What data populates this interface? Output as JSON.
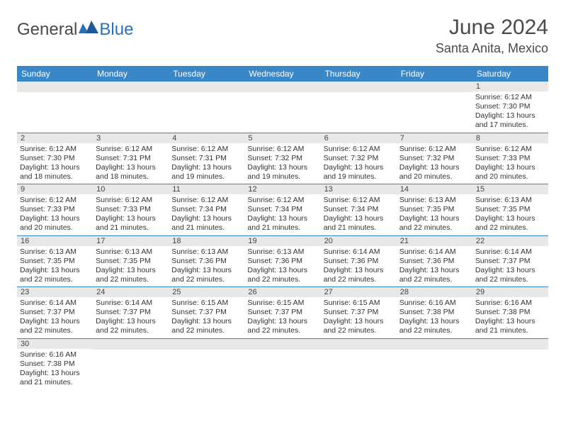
{
  "logo": {
    "text1": "General",
    "text2": "Blue"
  },
  "header": {
    "title": "June 2024",
    "subtitle": "Santa Anita, Mexico"
  },
  "days": [
    "Sunday",
    "Monday",
    "Tuesday",
    "Wednesday",
    "Thursday",
    "Friday",
    "Saturday"
  ],
  "colors": {
    "header_bg": "#3a87c7",
    "header_fg": "#ffffff",
    "daybar_bg": "#e8e8e8",
    "border": "#3a87c7",
    "text": "#333333",
    "title_color": "#4a4a4a",
    "logo_blue": "#2d6fb5"
  },
  "grid": [
    [
      {
        "n": "",
        "sr": "",
        "ss": "",
        "dl": ""
      },
      {
        "n": "",
        "sr": "",
        "ss": "",
        "dl": ""
      },
      {
        "n": "",
        "sr": "",
        "ss": "",
        "dl": ""
      },
      {
        "n": "",
        "sr": "",
        "ss": "",
        "dl": ""
      },
      {
        "n": "",
        "sr": "",
        "ss": "",
        "dl": ""
      },
      {
        "n": "",
        "sr": "",
        "ss": "",
        "dl": ""
      },
      {
        "n": "1",
        "sr": "Sunrise: 6:12 AM",
        "ss": "Sunset: 7:30 PM",
        "dl": "Daylight: 13 hours and 17 minutes."
      }
    ],
    [
      {
        "n": "2",
        "sr": "Sunrise: 6:12 AM",
        "ss": "Sunset: 7:30 PM",
        "dl": "Daylight: 13 hours and 18 minutes."
      },
      {
        "n": "3",
        "sr": "Sunrise: 6:12 AM",
        "ss": "Sunset: 7:31 PM",
        "dl": "Daylight: 13 hours and 18 minutes."
      },
      {
        "n": "4",
        "sr": "Sunrise: 6:12 AM",
        "ss": "Sunset: 7:31 PM",
        "dl": "Daylight: 13 hours and 19 minutes."
      },
      {
        "n": "5",
        "sr": "Sunrise: 6:12 AM",
        "ss": "Sunset: 7:32 PM",
        "dl": "Daylight: 13 hours and 19 minutes."
      },
      {
        "n": "6",
        "sr": "Sunrise: 6:12 AM",
        "ss": "Sunset: 7:32 PM",
        "dl": "Daylight: 13 hours and 19 minutes."
      },
      {
        "n": "7",
        "sr": "Sunrise: 6:12 AM",
        "ss": "Sunset: 7:32 PM",
        "dl": "Daylight: 13 hours and 20 minutes."
      },
      {
        "n": "8",
        "sr": "Sunrise: 6:12 AM",
        "ss": "Sunset: 7:33 PM",
        "dl": "Daylight: 13 hours and 20 minutes."
      }
    ],
    [
      {
        "n": "9",
        "sr": "Sunrise: 6:12 AM",
        "ss": "Sunset: 7:33 PM",
        "dl": "Daylight: 13 hours and 20 minutes."
      },
      {
        "n": "10",
        "sr": "Sunrise: 6:12 AM",
        "ss": "Sunset: 7:33 PM",
        "dl": "Daylight: 13 hours and 21 minutes."
      },
      {
        "n": "11",
        "sr": "Sunrise: 6:12 AM",
        "ss": "Sunset: 7:34 PM",
        "dl": "Daylight: 13 hours and 21 minutes."
      },
      {
        "n": "12",
        "sr": "Sunrise: 6:12 AM",
        "ss": "Sunset: 7:34 PM",
        "dl": "Daylight: 13 hours and 21 minutes."
      },
      {
        "n": "13",
        "sr": "Sunrise: 6:12 AM",
        "ss": "Sunset: 7:34 PM",
        "dl": "Daylight: 13 hours and 21 minutes."
      },
      {
        "n": "14",
        "sr": "Sunrise: 6:13 AM",
        "ss": "Sunset: 7:35 PM",
        "dl": "Daylight: 13 hours and 22 minutes."
      },
      {
        "n": "15",
        "sr": "Sunrise: 6:13 AM",
        "ss": "Sunset: 7:35 PM",
        "dl": "Daylight: 13 hours and 22 minutes."
      }
    ],
    [
      {
        "n": "16",
        "sr": "Sunrise: 6:13 AM",
        "ss": "Sunset: 7:35 PM",
        "dl": "Daylight: 13 hours and 22 minutes."
      },
      {
        "n": "17",
        "sr": "Sunrise: 6:13 AM",
        "ss": "Sunset: 7:35 PM",
        "dl": "Daylight: 13 hours and 22 minutes."
      },
      {
        "n": "18",
        "sr": "Sunrise: 6:13 AM",
        "ss": "Sunset: 7:36 PM",
        "dl": "Daylight: 13 hours and 22 minutes."
      },
      {
        "n": "19",
        "sr": "Sunrise: 6:13 AM",
        "ss": "Sunset: 7:36 PM",
        "dl": "Daylight: 13 hours and 22 minutes."
      },
      {
        "n": "20",
        "sr": "Sunrise: 6:14 AM",
        "ss": "Sunset: 7:36 PM",
        "dl": "Daylight: 13 hours and 22 minutes."
      },
      {
        "n": "21",
        "sr": "Sunrise: 6:14 AM",
        "ss": "Sunset: 7:36 PM",
        "dl": "Daylight: 13 hours and 22 minutes."
      },
      {
        "n": "22",
        "sr": "Sunrise: 6:14 AM",
        "ss": "Sunset: 7:37 PM",
        "dl": "Daylight: 13 hours and 22 minutes."
      }
    ],
    [
      {
        "n": "23",
        "sr": "Sunrise: 6:14 AM",
        "ss": "Sunset: 7:37 PM",
        "dl": "Daylight: 13 hours and 22 minutes."
      },
      {
        "n": "24",
        "sr": "Sunrise: 6:14 AM",
        "ss": "Sunset: 7:37 PM",
        "dl": "Daylight: 13 hours and 22 minutes."
      },
      {
        "n": "25",
        "sr": "Sunrise: 6:15 AM",
        "ss": "Sunset: 7:37 PM",
        "dl": "Daylight: 13 hours and 22 minutes."
      },
      {
        "n": "26",
        "sr": "Sunrise: 6:15 AM",
        "ss": "Sunset: 7:37 PM",
        "dl": "Daylight: 13 hours and 22 minutes."
      },
      {
        "n": "27",
        "sr": "Sunrise: 6:15 AM",
        "ss": "Sunset: 7:37 PM",
        "dl": "Daylight: 13 hours and 22 minutes."
      },
      {
        "n": "28",
        "sr": "Sunrise: 6:16 AM",
        "ss": "Sunset: 7:38 PM",
        "dl": "Daylight: 13 hours and 22 minutes."
      },
      {
        "n": "29",
        "sr": "Sunrise: 6:16 AM",
        "ss": "Sunset: 7:38 PM",
        "dl": "Daylight: 13 hours and 21 minutes."
      }
    ],
    [
      {
        "n": "30",
        "sr": "Sunrise: 6:16 AM",
        "ss": "Sunset: 7:38 PM",
        "dl": "Daylight: 13 hours and 21 minutes."
      },
      {
        "n": "",
        "sr": "",
        "ss": "",
        "dl": ""
      },
      {
        "n": "",
        "sr": "",
        "ss": "",
        "dl": ""
      },
      {
        "n": "",
        "sr": "",
        "ss": "",
        "dl": ""
      },
      {
        "n": "",
        "sr": "",
        "ss": "",
        "dl": ""
      },
      {
        "n": "",
        "sr": "",
        "ss": "",
        "dl": ""
      },
      {
        "n": "",
        "sr": "",
        "ss": "",
        "dl": ""
      }
    ]
  ]
}
